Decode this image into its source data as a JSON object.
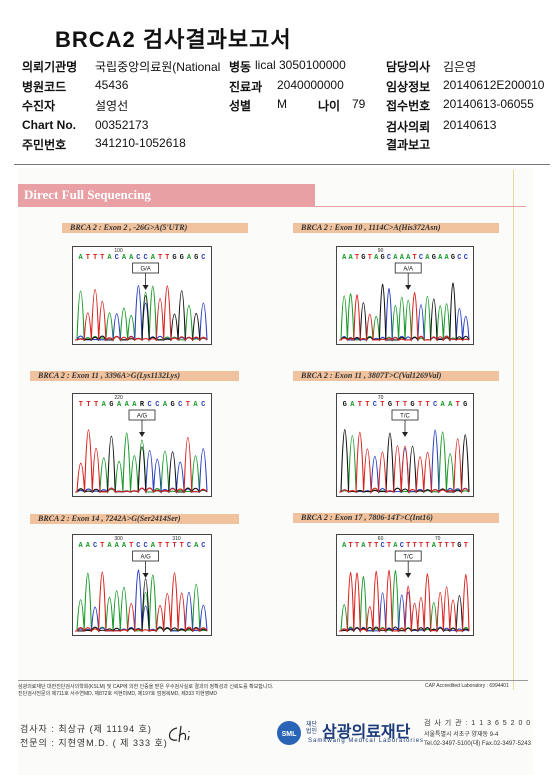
{
  "report_title": "BRCA2 검사결과보고서",
  "header": {
    "institution_label": "의뢰기관명",
    "institution_value": "국립중앙의료원(National",
    "ward_label": "병동",
    "ward_value": "lical 3050100000",
    "doctor_label": "담당의사",
    "doctor_value": "김은영",
    "hospital_code_label": "병원코드",
    "hospital_code_value": "45436",
    "dept_label": "진료과",
    "dept_value": "2040000000",
    "clinical_label": "임상정보",
    "clinical_value": "20140612E200010",
    "examinee_label": "수진자",
    "examinee_value": "설영선",
    "sex_label": "성별",
    "sex_value": "M",
    "age_label": "나이",
    "age_value": "79",
    "receipt_label": "접수번호",
    "receipt_value": "20140613-06055",
    "chart_label": "Chart No.",
    "chart_value": "00352173",
    "request_label": "검사의뢰",
    "request_value": "20140613",
    "id_label": "주민번호",
    "id_value": "341210-1052618",
    "result_label": "결과보고"
  },
  "section_title": "Direct Full Sequencing",
  "panels": [
    {
      "label": "BRCA 2 : Exon 2 , -26G>A(5'UTR)",
      "seq": "ATTTACAACCATTGGAGC",
      "n1": "100",
      "n2": "",
      "call": "G/A"
    },
    {
      "label": "BRCA 2 : Exon 10 , 1114C>A(His372Asn)",
      "seq": "AATGTAGCAAATCAGAAGCC",
      "n1": "90",
      "n2": "",
      "call": "A/A"
    },
    {
      "label": "BRCA 2 : Exon 11 , 3396A>G(Lys1132Lys)",
      "seq": "TTTAGAAARCCAGCTAC",
      "n1": "220",
      "n2": "",
      "call": "A/G"
    },
    {
      "label": "BRCA 2 : Exon 11 , 3807T>C(Val1269Val)",
      "seq": "GATTCTGTTGTTCAATG",
      "n1": "70",
      "n2": "",
      "call": "T/C"
    },
    {
      "label": "BRCA 2 : Exon 14 , 7242A>G(Ser2414Ser)",
      "seq": "AACTAAATCCATTTTCAC",
      "n1": "300",
      "n2": "310",
      "call": "A/G"
    },
    {
      "label": "BRCA 2 : Exon 17 , 7806-14T>C(Int16)",
      "seq": "ATTATTCTACTTTTATTTGT",
      "n1": "60",
      "n2": "70",
      "call": "T/C"
    }
  ],
  "footer": {
    "note1": "삼광의료재단 대한진단검사의학회(KSLM) 및 CAP에 의한 인증을 받은 우수검사실로 결과의 정확성과 신뢰도를 확보합니다.",
    "note2": "진단검사전문의  제711호 서수연MD, 제872호 석현미MD, 제197호 엄정복MD, 제333 지현영MD",
    "cap": "CAP Accredited Laboratory : 6994401",
    "examiner": "검사자 : 최상규  (제 11194 호)",
    "specialist": "전문의 : 지현영M.D. ( 제 333 호)",
    "logo_name": "삼광의료재단",
    "logo_prefix": "재단\n법인",
    "logo_en": "Samkwang Medical Laboratories",
    "logo_sml": "SML",
    "license": "검 사 기 관 : 1 1 3 6 5 2 0 0",
    "address": "서울특별시  서초구  양재동  9-4",
    "phone": "Tel.02-3497-5100(대)  Fax.02-3497-5243"
  },
  "colors": {
    "A": "#1a9a2a",
    "C": "#2a3fbf",
    "G": "#111111",
    "T": "#d8231f",
    "section": "#e8a0a4",
    "panel_label": "#f0c29e"
  }
}
